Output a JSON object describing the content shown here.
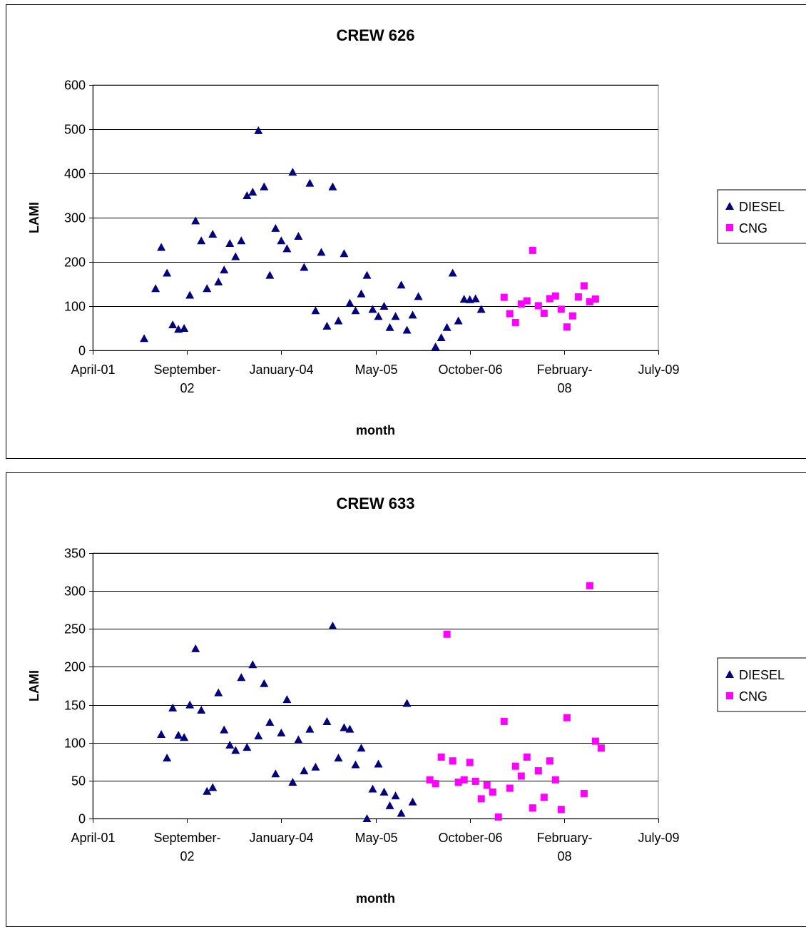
{
  "colors": {
    "diesel": "#000080",
    "cng": "#ff00ff",
    "grid": "#000000",
    "background": "#ffffff"
  },
  "chart_data": [
    {
      "type": "scatter",
      "title": "CREW 626",
      "xlabel": "month",
      "ylabel": "LAMI",
      "xlim": [
        "2001-04",
        "2009-07"
      ],
      "ylim": [
        0,
        600
      ],
      "x_ticks": [
        "April-01",
        "September-02",
        "January-04",
        "May-05",
        "October-06",
        "February-08",
        "July-09"
      ],
      "y_ticks": [
        "0",
        "100",
        "200",
        "300",
        "400",
        "500",
        "600"
      ],
      "grid": true,
      "legend_position": "right",
      "series": [
        {
          "name": "DIESEL",
          "marker": "triangle",
          "color": "#000080",
          "points": [
            [
              "2002-01",
              27
            ],
            [
              "2002-03",
              140
            ],
            [
              "2002-04",
              233
            ],
            [
              "2002-05",
              175
            ],
            [
              "2002-06",
              58
            ],
            [
              "2002-07",
              48
            ],
            [
              "2002-08",
              50
            ],
            [
              "2002-09",
              125
            ],
            [
              "2002-10",
              293
            ],
            [
              "2002-11",
              248
            ],
            [
              "2002-12",
              140
            ],
            [
              "2003-01",
              263
            ],
            [
              "2003-02",
              155
            ],
            [
              "2003-03",
              182
            ],
            [
              "2003-04",
              242
            ],
            [
              "2003-05",
              212
            ],
            [
              "2003-06",
              248
            ],
            [
              "2003-07",
              350
            ],
            [
              "2003-08",
              358
            ],
            [
              "2003-09",
              497
            ],
            [
              "2003-10",
              370
            ],
            [
              "2003-11",
              170
            ],
            [
              "2003-12",
              276
            ],
            [
              "2004-01",
              248
            ],
            [
              "2004-02",
              230
            ],
            [
              "2004-03",
              403
            ],
            [
              "2004-04",
              258
            ],
            [
              "2004-05",
              188
            ],
            [
              "2004-06",
              378
            ],
            [
              "2004-07",
              90
            ],
            [
              "2004-08",
              222
            ],
            [
              "2004-09",
              55
            ],
            [
              "2004-10",
              370
            ],
            [
              "2004-11",
              67
            ],
            [
              "2004-12",
              219
            ],
            [
              "2005-01",
              107
            ],
            [
              "2005-02",
              90
            ],
            [
              "2005-03",
              128
            ],
            [
              "2005-04",
              170
            ],
            [
              "2005-05",
              93
            ],
            [
              "2005-06",
              77
            ],
            [
              "2005-07",
              100
            ],
            [
              "2005-08",
              52
            ],
            [
              "2005-09",
              77
            ],
            [
              "2005-10",
              148
            ],
            [
              "2005-11",
              46
            ],
            [
              "2005-12",
              80
            ],
            [
              "2006-01",
              122
            ],
            [
              "2006-04",
              8
            ],
            [
              "2006-05",
              29
            ],
            [
              "2006-06",
              52
            ],
            [
              "2006-07",
              175
            ],
            [
              "2006-08",
              67
            ],
            [
              "2006-09",
              116
            ],
            [
              "2006-10",
              115
            ],
            [
              "2006-11",
              117
            ],
            [
              "2006-12",
              93
            ]
          ]
        },
        {
          "name": "CNG",
          "marker": "square",
          "color": "#ff00ff",
          "points": [
            [
              "2007-04",
              120
            ],
            [
              "2007-05",
              83
            ],
            [
              "2007-06",
              63
            ],
            [
              "2007-07",
              105
            ],
            [
              "2007-08",
              112
            ],
            [
              "2007-09",
              226
            ],
            [
              "2007-10",
              101
            ],
            [
              "2007-11",
              84
            ],
            [
              "2007-12",
              117
            ],
            [
              "2008-01",
              123
            ],
            [
              "2008-02",
              93
            ],
            [
              "2008-03",
              53
            ],
            [
              "2008-04",
              78
            ],
            [
              "2008-05",
              121
            ],
            [
              "2008-06",
              146
            ],
            [
              "2008-07",
              110
            ],
            [
              "2008-08",
              116
            ]
          ]
        }
      ]
    },
    {
      "type": "scatter",
      "title": "CREW 633",
      "xlabel": "month",
      "ylabel": "LAMI",
      "xlim": [
        "2001-04",
        "2009-07"
      ],
      "ylim": [
        0,
        350
      ],
      "x_ticks": [
        "April-01",
        "September-02",
        "January-04",
        "May-05",
        "October-06",
        "February-08",
        "July-09"
      ],
      "y_ticks": [
        "0",
        "50",
        "100",
        "150",
        "200",
        "250",
        "300",
        "350"
      ],
      "grid": true,
      "legend_position": "right",
      "series": [
        {
          "name": "DIESEL",
          "marker": "triangle",
          "color": "#000080",
          "points": [
            [
              "2002-04",
              111
            ],
            [
              "2002-05",
              80
            ],
            [
              "2002-06",
              146
            ],
            [
              "2002-07",
              110
            ],
            [
              "2002-08",
              107
            ],
            [
              "2002-09",
              150
            ],
            [
              "2002-10",
              224
            ],
            [
              "2002-11",
              143
            ],
            [
              "2002-12",
              36
            ],
            [
              "2003-01",
              41
            ],
            [
              "2003-02",
              166
            ],
            [
              "2003-03",
              117
            ],
            [
              "2003-04",
              97
            ],
            [
              "2003-05",
              90
            ],
            [
              "2003-06",
              186
            ],
            [
              "2003-07",
              94
            ],
            [
              "2003-08",
              203
            ],
            [
              "2003-09",
              109
            ],
            [
              "2003-10",
              178
            ],
            [
              "2003-11",
              127
            ],
            [
              "2003-12",
              59
            ],
            [
              "2004-01",
              113
            ],
            [
              "2004-02",
              157
            ],
            [
              "2004-03",
              48
            ],
            [
              "2004-04",
              104
            ],
            [
              "2004-05",
              63
            ],
            [
              "2004-06",
              118
            ],
            [
              "2004-07",
              68
            ],
            [
              "2004-09",
              128
            ],
            [
              "2004-10",
              254
            ],
            [
              "2004-11",
              80
            ],
            [
              "2004-12",
              120
            ],
            [
              "2005-01",
              118
            ],
            [
              "2005-02",
              71
            ],
            [
              "2005-03",
              93
            ],
            [
              "2005-04",
              0
            ],
            [
              "2005-05",
              39
            ],
            [
              "2005-06",
              72
            ],
            [
              "2005-07",
              35
            ],
            [
              "2005-08",
              17
            ],
            [
              "2005-09",
              30
            ],
            [
              "2005-10",
              7
            ],
            [
              "2005-11",
              152
            ],
            [
              "2005-12",
              22
            ]
          ]
        },
        {
          "name": "CNG",
          "marker": "square",
          "color": "#ff00ff",
          "points": [
            [
              "2006-03",
              51
            ],
            [
              "2006-04",
              46
            ],
            [
              "2006-05",
              81
            ],
            [
              "2006-06",
              243
            ],
            [
              "2006-07",
              76
            ],
            [
              "2006-08",
              48
            ],
            [
              "2006-09",
              51
            ],
            [
              "2006-10",
              74
            ],
            [
              "2006-11",
              49
            ],
            [
              "2006-12",
              26
            ],
            [
              "2007-01",
              44
            ],
            [
              "2007-02",
              35
            ],
            [
              "2007-03",
              2
            ],
            [
              "2007-04",
              128
            ],
            [
              "2007-05",
              40
            ],
            [
              "2007-06",
              69
            ],
            [
              "2007-07",
              56
            ],
            [
              "2007-08",
              81
            ],
            [
              "2007-09",
              14
            ],
            [
              "2007-10",
              63
            ],
            [
              "2007-11",
              28
            ],
            [
              "2007-12",
              76
            ],
            [
              "2008-01",
              51
            ],
            [
              "2008-02",
              12
            ],
            [
              "2008-03",
              133
            ],
            [
              "2008-06",
              33
            ],
            [
              "2008-07",
              307
            ],
            [
              "2008-08",
              102
            ],
            [
              "2008-09",
              93
            ]
          ]
        }
      ]
    }
  ]
}
